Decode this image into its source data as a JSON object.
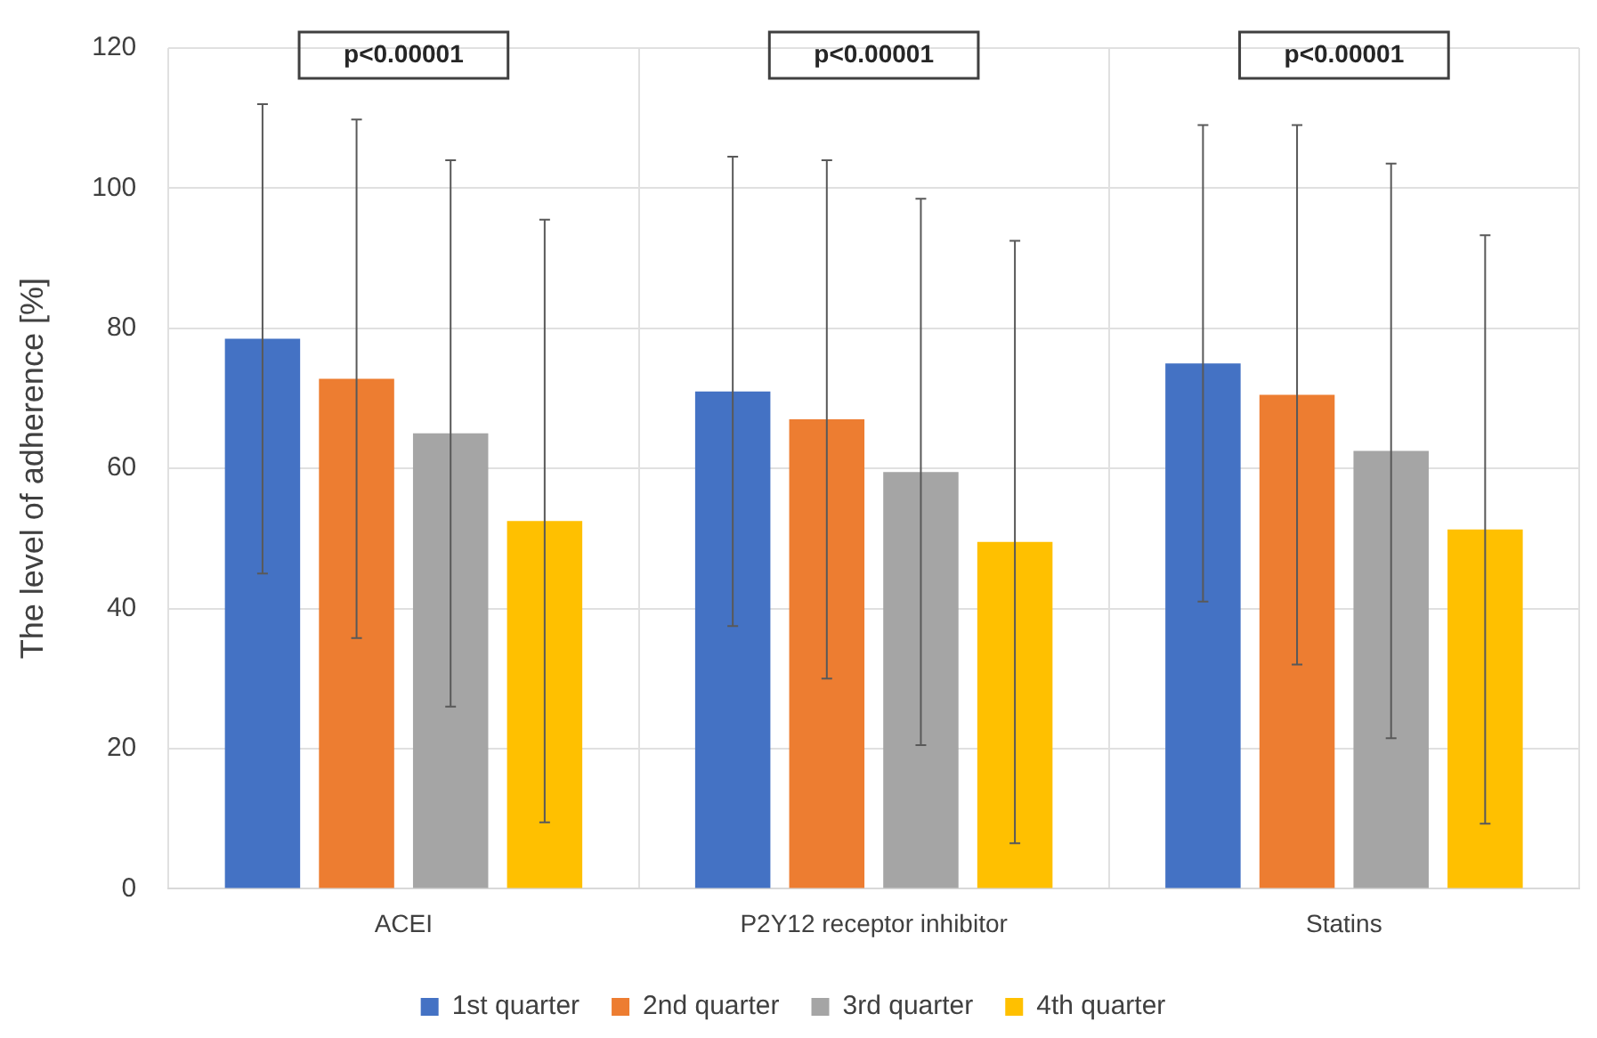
{
  "chart_data": {
    "type": "bar",
    "ylabel": "The level of adherence [%]",
    "categories": [
      "ACEI",
      "P2Y12 receptor inhibitor",
      "Statins"
    ],
    "series": [
      {
        "name": "1st quarter",
        "color": "#4472c4",
        "values": [
          78.5,
          71,
          75
        ],
        "errors": [
          33.5,
          33.5,
          34
        ]
      },
      {
        "name": "2nd quarter",
        "color": "#ed7d31",
        "values": [
          72.8,
          67,
          70.5
        ],
        "errors": [
          37,
          37,
          38.5
        ]
      },
      {
        "name": "3rd quarter",
        "color": "#a5a5a5",
        "values": [
          65,
          59.5,
          62.5
        ],
        "errors": [
          39,
          39,
          41
        ]
      },
      {
        "name": "4th quarter",
        "color": "#ffc000",
        "values": [
          52.5,
          49.5,
          51.3
        ],
        "errors": [
          43,
          43,
          42
        ]
      }
    ],
    "ylim": [
      0,
      120
    ],
    "yticks": [
      0,
      20,
      40,
      60,
      80,
      100,
      120
    ],
    "grid": true,
    "legend": "bottom",
    "annotations": [
      "p<0.00001",
      "p<0.00001",
      "p<0.00001"
    ]
  }
}
